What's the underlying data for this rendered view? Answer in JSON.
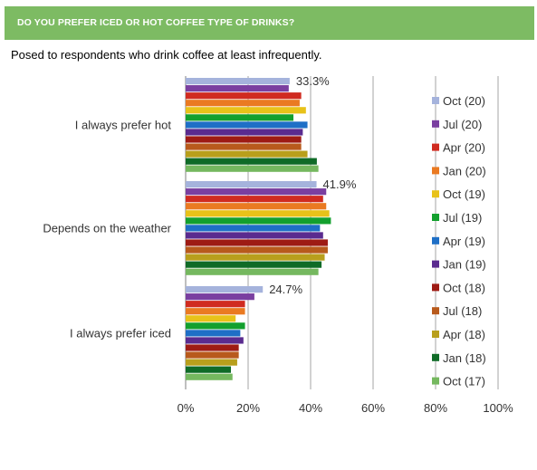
{
  "header": {
    "title": "DO YOU PREFER ICED OR HOT COFFEE TYPE OF DRINKS?"
  },
  "subtitle": "Posed to respondents who drink coffee at least infrequently.",
  "chart_data": {
    "type": "bar",
    "orientation": "horizontal",
    "categories": [
      "I always prefer hot",
      "Depends on the weather",
      "I always prefer iced"
    ],
    "xlim": [
      0,
      100
    ],
    "x_ticks": [
      0,
      20,
      40,
      60,
      80,
      100
    ],
    "x_tick_labels": [
      "0%",
      "20%",
      "40%",
      "60%",
      "80%",
      "100%"
    ],
    "grid": true,
    "legend_position": "right",
    "annotations": [
      "33.3%",
      "41.9%",
      "24.7%"
    ],
    "series": [
      {
        "name": "Oct (20)",
        "color": "#a5b3dc",
        "values": [
          33.3,
          41.9,
          24.7
        ]
      },
      {
        "name": "Jul (20)",
        "color": "#7a3fa0",
        "values": [
          33,
          45,
          22
        ]
      },
      {
        "name": "Apr (20)",
        "color": "#d02b20",
        "values": [
          37,
          44,
          19
        ]
      },
      {
        "name": "Jan (20)",
        "color": "#ea7a22",
        "values": [
          36.5,
          45,
          19
        ]
      },
      {
        "name": "Oct (19)",
        "color": "#e8c219",
        "values": [
          38.5,
          46,
          16
        ]
      },
      {
        "name": "Jul (19)",
        "color": "#13a02e",
        "values": [
          34.5,
          46.5,
          19
        ]
      },
      {
        "name": "Apr (19)",
        "color": "#1f6fc6",
        "values": [
          39,
          43,
          17.5
        ]
      },
      {
        "name": "Jan (19)",
        "color": "#5a2b8f",
        "values": [
          37.5,
          44,
          18.5
        ]
      },
      {
        "name": "Oct (18)",
        "color": "#9e1b14",
        "values": [
          37,
          45.5,
          17
        ]
      },
      {
        "name": "Jul (18)",
        "color": "#b85a1c",
        "values": [
          37,
          45.5,
          17
        ]
      },
      {
        "name": "Apr (18)",
        "color": "#b89f1c",
        "values": [
          39,
          44.5,
          16.5
        ]
      },
      {
        "name": "Jan (18)",
        "color": "#0f6b27",
        "values": [
          42,
          43.5,
          14.5
        ]
      },
      {
        "name": "Oct (17)",
        "color": "#75b85f",
        "values": [
          42.5,
          42.5,
          15
        ]
      }
    ]
  }
}
